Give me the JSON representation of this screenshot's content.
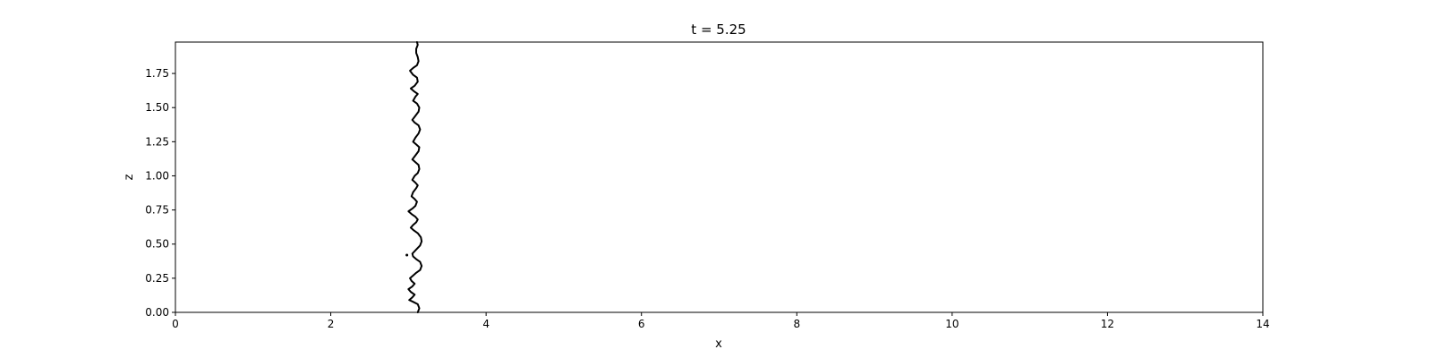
{
  "chart_data": {
    "type": "line",
    "title": "t = 5.25",
    "xlabel": "x",
    "ylabel": "z",
    "xlim": [
      0,
      14
    ],
    "ylim": [
      0,
      1.98
    ],
    "grid": false,
    "legend": "none",
    "line_color": "#000000",
    "x_ticks": [
      0,
      2,
      4,
      6,
      8,
      10,
      12,
      14
    ],
    "x_tick_labels": [
      "0",
      "2",
      "4",
      "6",
      "8",
      "10",
      "12",
      "14"
    ],
    "y_ticks": [
      0.0,
      0.25,
      0.5,
      0.75,
      1.0,
      1.25,
      1.5,
      1.75
    ],
    "y_tick_labels": [
      "0.00",
      "0.25",
      "0.50",
      "0.75",
      "1.00",
      "1.25",
      "1.50",
      "1.75"
    ],
    "series": [
      {
        "values": [
          [
            3.12,
            0.0
          ],
          [
            3.14,
            0.03
          ],
          [
            3.12,
            0.06
          ],
          [
            3.05,
            0.08
          ],
          [
            3.01,
            0.09
          ],
          [
            3.05,
            0.11
          ],
          [
            3.08,
            0.13
          ],
          [
            3.03,
            0.15
          ],
          [
            3.0,
            0.17
          ],
          [
            3.05,
            0.19
          ],
          [
            3.08,
            0.21
          ],
          [
            3.04,
            0.23
          ],
          [
            3.02,
            0.25
          ],
          [
            3.06,
            0.27
          ],
          [
            3.1,
            0.29
          ],
          [
            3.15,
            0.31
          ],
          [
            3.17,
            0.34
          ],
          [
            3.15,
            0.37
          ],
          [
            3.1,
            0.39
          ],
          [
            3.06,
            0.41
          ],
          [
            3.05,
            0.43
          ],
          [
            3.1,
            0.46
          ],
          [
            3.15,
            0.49
          ],
          [
            3.17,
            0.52
          ],
          [
            3.16,
            0.55
          ],
          [
            3.12,
            0.58
          ],
          [
            3.07,
            0.6
          ],
          [
            3.03,
            0.62
          ],
          [
            3.06,
            0.64
          ],
          [
            3.1,
            0.66
          ],
          [
            3.12,
            0.68
          ],
          [
            3.09,
            0.7
          ],
          [
            3.04,
            0.72
          ],
          [
            3.0,
            0.74
          ],
          [
            3.05,
            0.76
          ],
          [
            3.09,
            0.78
          ],
          [
            3.11,
            0.81
          ],
          [
            3.08,
            0.83
          ],
          [
            3.04,
            0.85
          ],
          [
            3.06,
            0.88
          ],
          [
            3.1,
            0.91
          ],
          [
            3.12,
            0.93
          ],
          [
            3.09,
            0.95
          ],
          [
            3.05,
            0.97
          ],
          [
            3.08,
            1.0
          ],
          [
            3.12,
            1.02
          ],
          [
            3.14,
            1.05
          ],
          [
            3.13,
            1.08
          ],
          [
            3.09,
            1.1
          ],
          [
            3.05,
            1.12
          ],
          [
            3.09,
            1.15
          ],
          [
            3.13,
            1.18
          ],
          [
            3.14,
            1.21
          ],
          [
            3.1,
            1.23
          ],
          [
            3.06,
            1.25
          ],
          [
            3.09,
            1.28
          ],
          [
            3.13,
            1.31
          ],
          [
            3.15,
            1.34
          ],
          [
            3.13,
            1.37
          ],
          [
            3.08,
            1.39
          ],
          [
            3.05,
            1.41
          ],
          [
            3.09,
            1.44
          ],
          [
            3.13,
            1.47
          ],
          [
            3.14,
            1.5
          ],
          [
            3.11,
            1.53
          ],
          [
            3.06,
            1.55
          ],
          [
            3.09,
            1.58
          ],
          [
            3.12,
            1.6
          ],
          [
            3.07,
            1.62
          ],
          [
            3.03,
            1.64
          ],
          [
            3.08,
            1.66
          ],
          [
            3.12,
            1.69
          ],
          [
            3.11,
            1.72
          ],
          [
            3.06,
            1.74
          ],
          [
            3.02,
            1.77
          ],
          [
            3.06,
            1.79
          ],
          [
            3.11,
            1.81
          ],
          [
            3.13,
            1.84
          ],
          [
            3.12,
            1.87
          ],
          [
            3.1,
            1.9
          ],
          [
            3.1,
            1.93
          ],
          [
            3.12,
            1.96
          ],
          [
            3.11,
            1.98
          ]
        ]
      }
    ],
    "isolated_points": [
      [
        2.98,
        0.42
      ]
    ]
  }
}
